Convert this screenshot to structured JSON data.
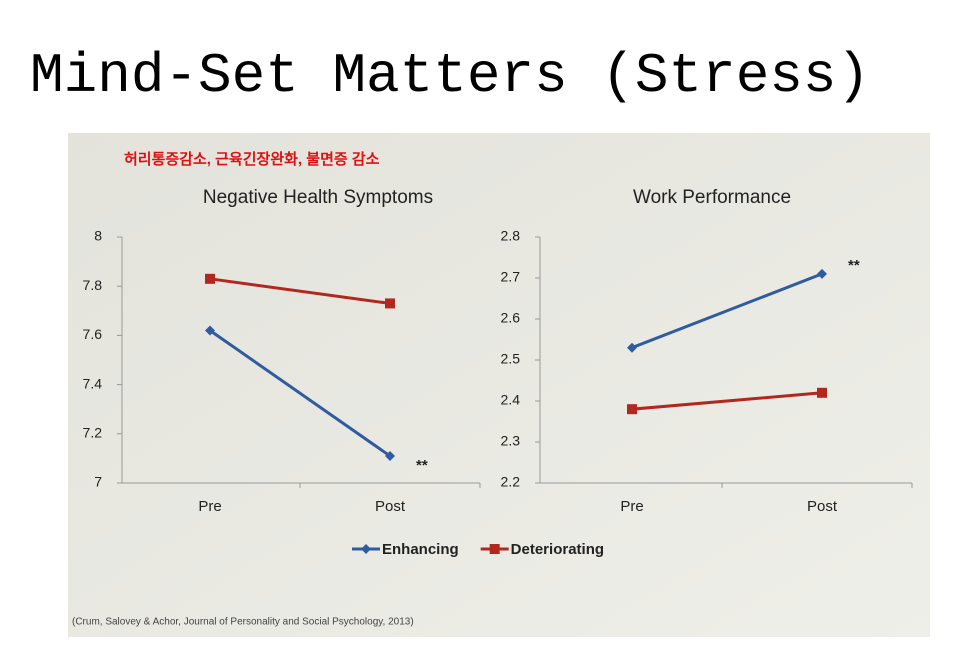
{
  "title": "Mind-Set Matters (Stress)",
  "annotation": "허리통증감소, 근육긴장완화, 불면증 감소",
  "citation": "(Crum, Salovey & Achor, Journal of Personality and Social Psychology, 2013)",
  "chart_data": [
    {
      "type": "line",
      "title": "Negative Health Symptoms",
      "categories": [
        "Pre",
        "Post"
      ],
      "series": [
        {
          "name": "Enhancing",
          "color": "#2f5c9e",
          "marker": "diamond",
          "values": [
            7.62,
            7.11
          ]
        },
        {
          "name": "Deteriorating",
          "color": "#b3281e",
          "marker": "square",
          "values": [
            7.83,
            7.73
          ]
        }
      ],
      "ylim": [
        7,
        8
      ],
      "yticks": [
        7,
        7.2,
        7.4,
        7.6,
        7.8,
        8
      ],
      "note": "**"
    },
    {
      "type": "line",
      "title": "Work Performance",
      "categories": [
        "Pre",
        "Post"
      ],
      "series": [
        {
          "color": "#2f5c9e",
          "marker": "diamond",
          "values": [
            2.53,
            2.71
          ]
        },
        {
          "color": "#b3281e",
          "marker": "square",
          "values": [
            2.38,
            2.42
          ]
        }
      ],
      "ylim": [
        2.2,
        2.8
      ],
      "yticks": [
        2.2,
        2.3,
        2.4,
        2.5,
        2.6,
        2.7,
        2.8
      ],
      "note": "**"
    }
  ]
}
